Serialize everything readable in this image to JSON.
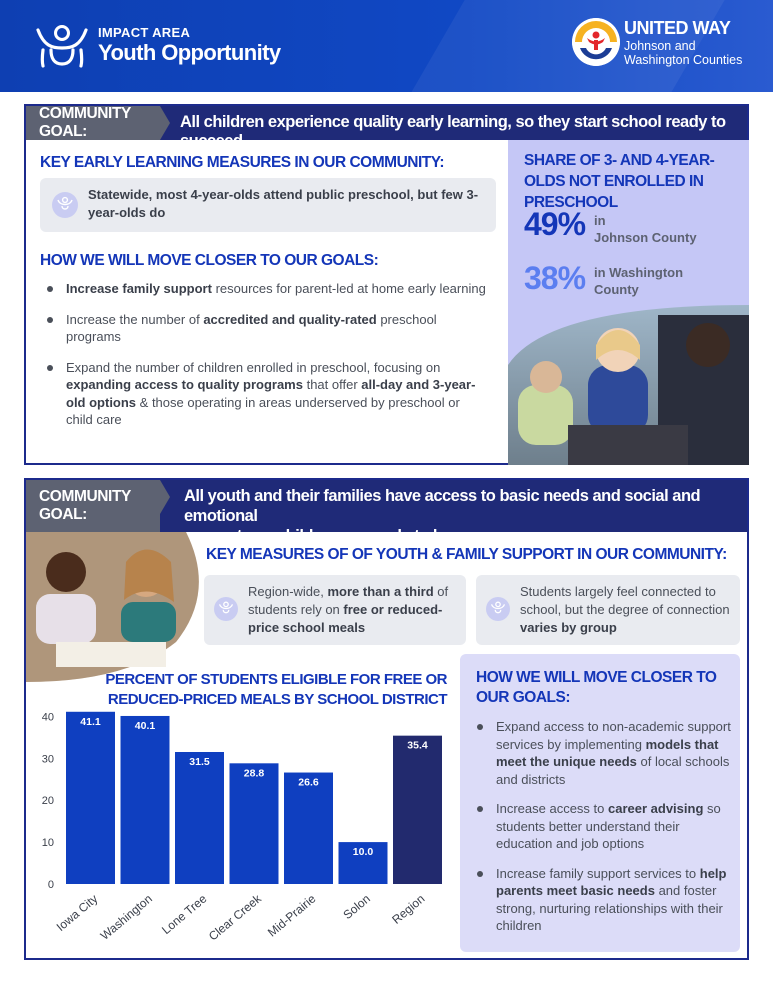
{
  "header": {
    "impact_label": "IMPACT AREA",
    "impact_title": "Youth Opportunity",
    "org_name": "UNITED WAY",
    "org_sub_1": "Johnson and",
    "org_sub_2": "Washington Counties"
  },
  "section1": {
    "goal_label": "COMMUNITY GOAL:",
    "goal_text": "All children experience quality early learning, so they start school ready to succeed",
    "measures_heading": "KEY EARLY LEARNING MEASURES IN OUR COMMUNITY:",
    "measure_callout": "Statewide, most 4-year-olds attend public preschool, but few 3-year-olds do",
    "how_heading": "HOW WE WILL MOVE CLOSER TO OUR GOALS:",
    "bullets": [
      {
        "pre": "",
        "bold": "Increase family support",
        "post": " resources for parent-led at home early learning"
      },
      {
        "pre": "Increase the number of ",
        "bold": "accredited and quality-rated",
        "post": " preschool programs"
      },
      {
        "pre": "Expand the number of children enrolled in preschool, focusing on ",
        "bold": "expanding access to quality programs",
        "mid": " that offer ",
        "bold2": "all-day and 3-year-old options",
        "post": " & those operating in areas underserved by preschool or child care"
      }
    ],
    "share_title": "SHARE OF 3- AND 4-YEAR-OLDS NOT ENROLLED IN PRESCHOOL",
    "stat1_value": "49%",
    "stat1_label_1": "in",
    "stat1_label_2": "Johnson County",
    "stat2_value": "38%",
    "stat2_label_1": "in Washington",
    "stat2_label_2": "County"
  },
  "section2": {
    "goal_label": "COMMUNITY GOAL:",
    "goal_text_1": "All youth and their families have access to basic needs and social and emotional",
    "goal_text_2": "supports so children are ready to learn",
    "measures_heading": "KEY MEASURES OF OF YOUTH & FAMILY SUPPORT IN OUR COMMUNITY:",
    "callout1": {
      "pre": "Region-wide, ",
      "bold1": "more than a third",
      "mid": " of students rely on ",
      "bold2": "free or reduced-price school meals"
    },
    "callout2": {
      "pre": "Students largely feel connected to school, but the degree of connection ",
      "bold": "varies by group"
    },
    "chart_title_1": "PERCENT OF STUDENTS ELIGIBLE FOR FREE OR",
    "chart_title_2": "REDUCED-PRICED MEALS BY SCHOOL DISTRICT",
    "how_heading": "HOW WE WILL MOVE CLOSER TO OUR GOALS:",
    "bullets": [
      {
        "pre": "Expand access to non-academic support services by implementing ",
        "bold": "models that meet the unique needs",
        "post": " of local schools and districts"
      },
      {
        "pre": "Increase access to ",
        "bold": "career advising",
        "post": " so students better understand their education and job options"
      },
      {
        "pre": "Increase family support services to ",
        "bold": "help parents meet basic needs",
        "post": " and foster strong, nurturing relationships with their children"
      }
    ]
  },
  "chart_data": {
    "type": "bar",
    "title": "PERCENT OF STUDENTS ELIGIBLE FOR FREE OR REDUCED-PRICED MEALS BY SCHOOL DISTRICT",
    "categories": [
      "Iowa City",
      "Washington",
      "Lone Tree",
      "Clear Creek",
      "Mid-Prairie",
      "Solon",
      "Region"
    ],
    "values": [
      41.1,
      40.1,
      31.5,
      28.8,
      26.6,
      10.0,
      35.4
    ],
    "value_labels": [
      "41.1",
      "40.1",
      "31.5",
      "28.8",
      "26.6",
      "10.0",
      "35.4"
    ],
    "yticks": [
      "0",
      "10",
      "20",
      "30",
      "40"
    ],
    "ylim": [
      0,
      42
    ],
    "grid": false,
    "colors": {
      "district": "#0f3fc0",
      "region": "#222a6e"
    }
  }
}
